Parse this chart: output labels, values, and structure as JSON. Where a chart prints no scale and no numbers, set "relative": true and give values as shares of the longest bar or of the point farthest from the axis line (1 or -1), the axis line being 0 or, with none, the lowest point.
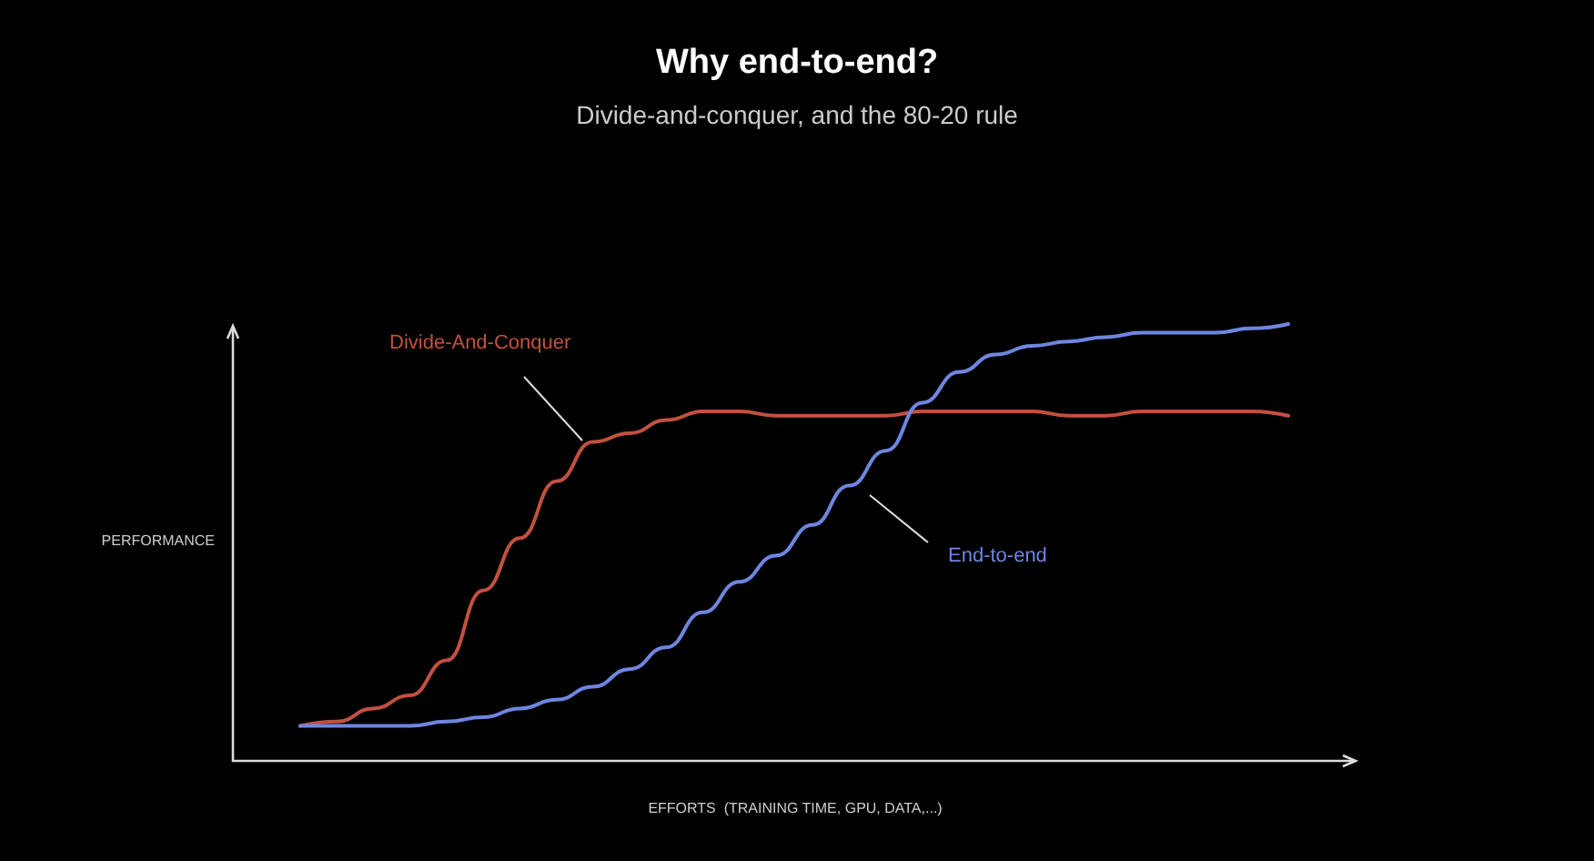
{
  "chart_data": {
    "type": "line",
    "title": "Why end-to-end?",
    "subtitle": "Divide-and-conquer, and the 80-20 rule",
    "xlabel": "EFFORTS  (TRAINING TIME, GPU, DATA,...)",
    "ylabel": "PERFORMANCE",
    "relative": true,
    "legend": false,
    "grid": false,
    "marker": "none",
    "line_style": "solid",
    "categories": [
      null,
      null,
      null,
      null,
      null,
      null,
      null,
      null,
      null,
      null,
      null,
      null,
      null,
      null,
      null,
      null,
      null,
      null,
      null,
      null,
      null,
      null,
      null,
      null,
      null,
      null,
      null,
      null
    ],
    "series": [
      {
        "name": "Divide-And-Conquer",
        "color": "#c2513f",
        "values": [
          0.08,
          0.09,
          0.12,
          0.15,
          0.23,
          0.39,
          0.51,
          0.64,
          0.73,
          0.75,
          0.78,
          0.8,
          0.8,
          0.79,
          0.79,
          0.79,
          0.79,
          0.8,
          0.8,
          0.8,
          0.8,
          0.79,
          0.79,
          0.8,
          0.8,
          0.8,
          0.8,
          0.79
        ]
      },
      {
        "name": "End-to-end",
        "color": "#6f86e0",
        "values": [
          0.08,
          0.08,
          0.08,
          0.08,
          0.09,
          0.1,
          0.12,
          0.14,
          0.17,
          0.21,
          0.26,
          0.34,
          0.41,
          0.47,
          0.54,
          0.63,
          0.71,
          0.82,
          0.89,
          0.93,
          0.95,
          0.96,
          0.97,
          0.98,
          0.98,
          0.98,
          0.99,
          1
        ]
      }
    ]
  }
}
